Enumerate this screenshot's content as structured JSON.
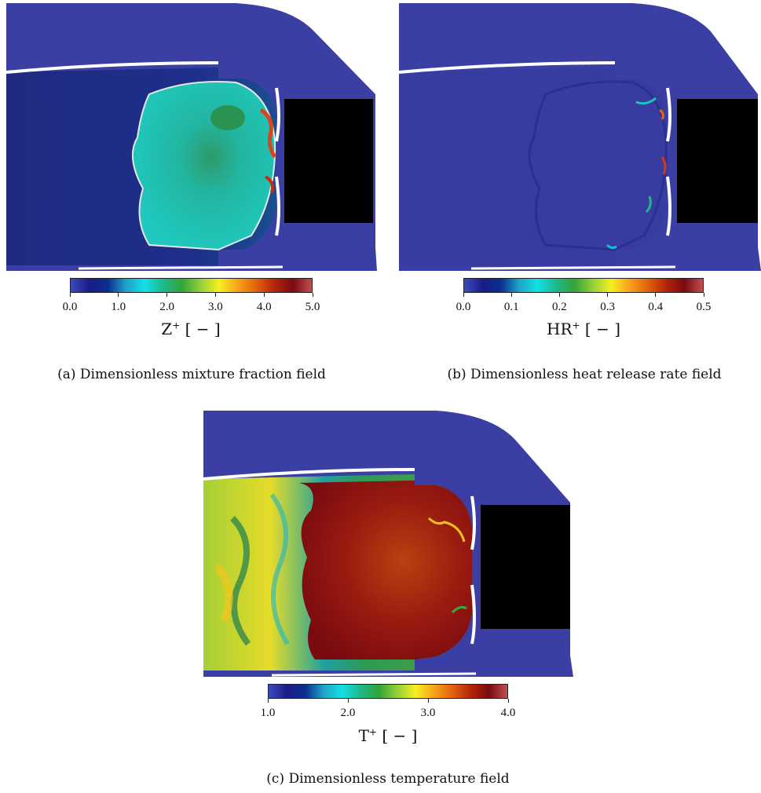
{
  "colors": {
    "outer_flow": "#3b3fa3",
    "injector_body": "#000000",
    "separator": "#ffffff"
  },
  "colormap": [
    "#3b4cc0",
    "#1b1b86",
    "#0a2f8f",
    "#1fa4c8",
    "#13e0e6",
    "#1eb88a",
    "#32a43a",
    "#93cf3a",
    "#f5ef21",
    "#f9a21b",
    "#e2620d",
    "#b4240a",
    "#7a0a10",
    "#c05050"
  ],
  "panels": [
    {
      "id": "a",
      "colorbar": {
        "ticks": [
          "0.0",
          "1.0",
          "2.0",
          "3.0",
          "4.0",
          "5.0"
        ],
        "variable": "Z",
        "sup": "+",
        "unit": "[ − ]"
      },
      "caption": "(a) Dimensionless mixture fraction field"
    },
    {
      "id": "b",
      "colorbar": {
        "ticks": [
          "0.0",
          "0.1",
          "0.2",
          "0.3",
          "0.4",
          "0.5"
        ],
        "variable": "HR",
        "sup": "+",
        "unit": "[ − ]"
      },
      "caption": "(b) Dimensionless heat release rate field"
    },
    {
      "id": "c",
      "colorbar": {
        "ticks": [
          "1.0",
          "2.0",
          "3.0",
          "4.0"
        ],
        "variable": "T",
        "sup": "+",
        "unit": "[ − ]"
      },
      "caption": "(c) Dimensionless temperature field"
    }
  ]
}
